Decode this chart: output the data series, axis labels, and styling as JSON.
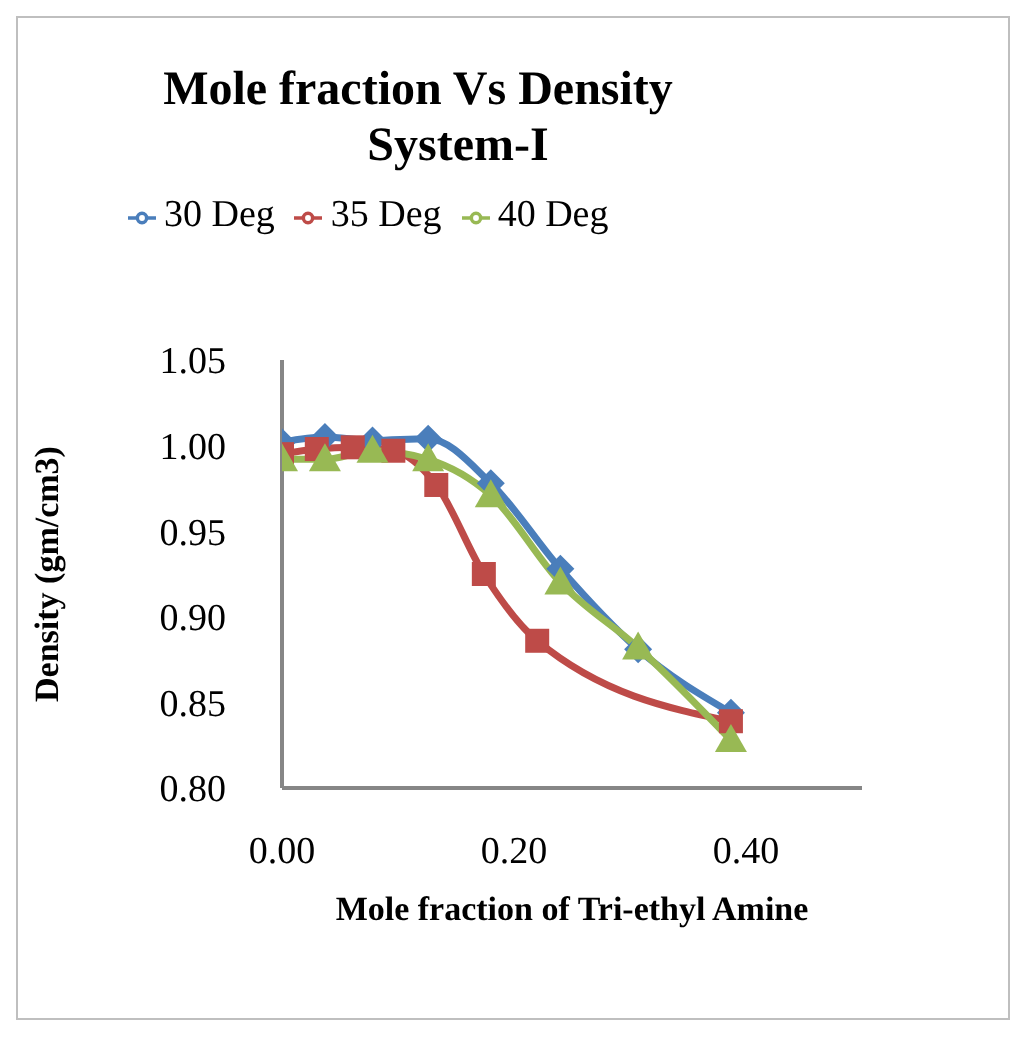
{
  "chart_data": {
    "type": "line",
    "title": "Mole fraction Vs Density\nSystem-I",
    "xlabel": "Mole fraction of Tri-ethyl Amine",
    "ylabel": "Density   (gm/cm3)",
    "x": [
      0,
      0.037,
      0.078,
      0.126,
      0.18,
      0.24,
      0.307,
      0.387
    ],
    "series": [
      {
        "name": "30 Deg",
        "color": "#4a7ebb",
        "marker": "diamond",
        "values": [
          1.002,
          1.005,
          1.003,
          1.004,
          0.978,
          0.928,
          0.881,
          0.844
        ]
      },
      {
        "name": "35 Deg",
        "color": "#be4b48",
        "marker": "square",
        "x": [
          0,
          0.03,
          0.061,
          0.096,
          0.133,
          0.174,
          0.22,
          0.387
        ],
        "values": [
          0.995,
          0.998,
          0.999,
          0.997,
          0.977,
          0.925,
          0.886,
          0.839
        ]
      },
      {
        "name": "40 Deg",
        "color": "#98b954",
        "marker": "triangle",
        "values": [
          0.992,
          0.992,
          0.997,
          0.992,
          0.971,
          0.92,
          0.882,
          0.828
        ]
      }
    ],
    "xlim": [
      0,
      0.5
    ],
    "xticks": [
      {
        "value": 0,
        "label": "0.00"
      },
      {
        "value": 0.2,
        "label": "0.20"
      },
      {
        "value": 0.4,
        "label": "0.40"
      }
    ],
    "ylim": [
      0.8,
      1.05
    ],
    "yticks": [
      {
        "value": 0.8,
        "label": "0.80"
      },
      {
        "value": 0.85,
        "label": "0.85"
      },
      {
        "value": 0.9,
        "label": "0.90"
      },
      {
        "value": 0.95,
        "label": "0.95"
      },
      {
        "value": 1,
        "label": "1.00"
      },
      {
        "value": 1.05,
        "label": "1.05"
      }
    ],
    "grid": false,
    "legend": "top",
    "line_style": "solid"
  }
}
